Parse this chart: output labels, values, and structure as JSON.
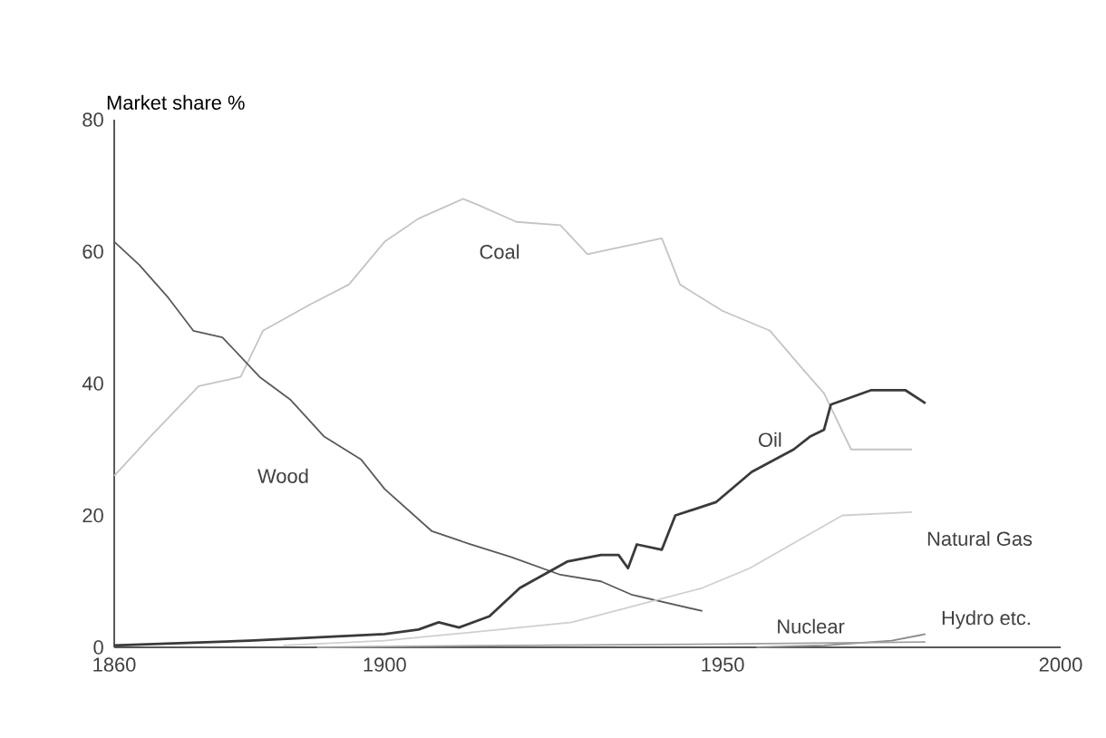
{
  "chart_data": {
    "type": "line",
    "ylabel": "Market share %",
    "xlim": [
      1860,
      2000
    ],
    "ylim": [
      0,
      80
    ],
    "xticks": [
      1860,
      1900,
      1950,
      2000
    ],
    "yticks": [
      0,
      20,
      40,
      60,
      80
    ],
    "grid": false,
    "legend": false,
    "series": [
      {
        "name": "Coal",
        "color": "#c4c4c4",
        "x": [
          1860,
          1865.4,
          1872.5,
          1878.7,
          1882,
          1889,
          1894.7,
          1900,
          1905,
          1911.6,
          1914,
          1919.5,
          1926,
          1930,
          1941,
          1943.7,
          1950,
          1957,
          1962,
          1965,
          1969,
          1978
        ],
        "values": [
          26,
          32,
          39.6,
          41,
          48,
          52,
          55,
          61.5,
          65,
          68,
          67,
          64.5,
          64,
          59.6,
          62,
          55,
          51,
          48,
          42,
          38.5,
          30,
          30
        ]
      },
      {
        "name": "Wood",
        "color": "#5a5a5a",
        "x": [
          1860,
          1863.7,
          1868,
          1871.7,
          1876,
          1881.5,
          1886,
          1891,
          1896.5,
          1900,
          1907,
          1912.5,
          1918.7,
          1926,
          1932,
          1936.5,
          1947
        ],
        "values": [
          61.5,
          58,
          53,
          48,
          47,
          41,
          37.6,
          32,
          28.5,
          24,
          17.6,
          15.7,
          13.7,
          11,
          10,
          8,
          5.5
        ]
      },
      {
        "name": "Oil",
        "color": "#3a3a3a",
        "x": [
          1860,
          1880,
          1900,
          1905,
          1908,
          1911,
          1915.5,
          1920,
          1927,
          1932,
          1934.6,
          1936,
          1937.3,
          1941,
          1943,
          1949,
          1954.3,
          1960.5,
          1963,
          1965,
          1966,
          1972,
          1977,
          1980
        ],
        "values": [
          0.3,
          1,
          2,
          2.7,
          3.8,
          3,
          4.7,
          9,
          13,
          14,
          14,
          12,
          15.6,
          14.8,
          20,
          22,
          26.6,
          30,
          32,
          33,
          36.8,
          39,
          39,
          37
        ]
      },
      {
        "name": "Natural Gas",
        "color": "#cfcfcf",
        "x": [
          1885,
          1900,
          1920,
          1927.7,
          1947,
          1954,
          1967.7,
          1978
        ],
        "values": [
          0.3,
          1,
          3,
          3.8,
          9,
          12,
          20,
          20.5
        ]
      },
      {
        "name": "Nuclear",
        "color": "#8a8a8a",
        "x": [
          1955,
          1965,
          1975,
          1980
        ],
        "values": [
          0,
          0.3,
          1,
          2
        ]
      },
      {
        "name": "Hydro etc.",
        "color": "#a0a0a0",
        "x": [
          1890,
          1920,
          1950,
          1980
        ],
        "values": [
          0,
          0.3,
          0.5,
          0.8
        ]
      }
    ]
  }
}
